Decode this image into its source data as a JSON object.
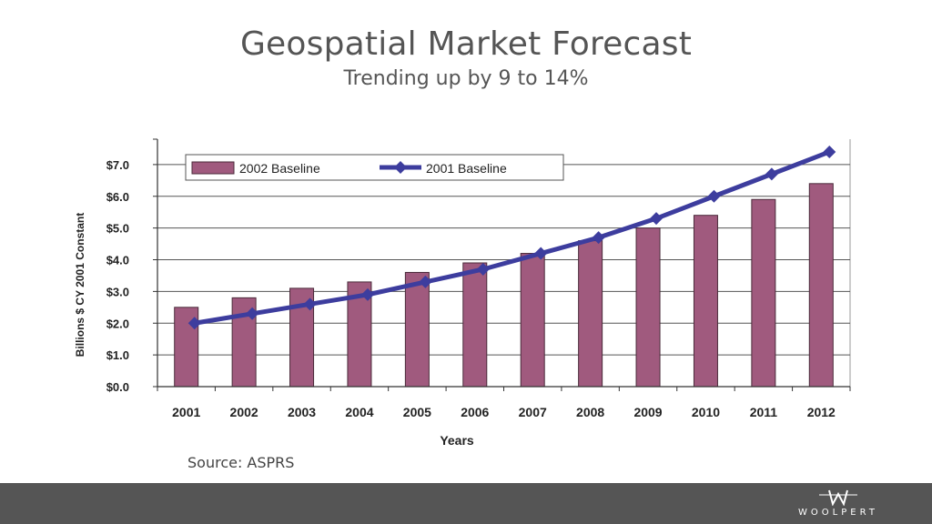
{
  "slide": {
    "title": "Geospatial Market Forecast",
    "subtitle": "Trending up by 9 to 14%",
    "source": "Source: ASPRS",
    "logo_text": "WOOLPERT"
  },
  "colors": {
    "bar": "#a05a7e",
    "bar_stroke": "#4a2a3a",
    "line": "#3d3d9e",
    "footer": "#555555"
  },
  "chart_data": {
    "type": "bar",
    "xlabel": "Years",
    "ylabel": "Billions $ CY 2001 Constant",
    "categories": [
      "2001",
      "2002",
      "2003",
      "2004",
      "2005",
      "2006",
      "2007",
      "2008",
      "2009",
      "2010",
      "2011",
      "2012"
    ],
    "ylim": [
      0,
      7.8
    ],
    "yticks": [
      {
        "value": 0,
        "label": "$0.0"
      },
      {
        "value": 1,
        "label": "$1.0"
      },
      {
        "value": 2,
        "label": "$2.0"
      },
      {
        "value": 3,
        "label": "$3.0"
      },
      {
        "value": 4,
        "label": "$4.0"
      },
      {
        "value": 5,
        "label": "$5.0"
      },
      {
        "value": 6,
        "label": "$6.0"
      },
      {
        "value": 7,
        "label": "$7.0"
      }
    ],
    "grid": true,
    "legend_position": "top",
    "series": [
      {
        "name": "2002 Baseline",
        "type": "bar",
        "values": [
          2.5,
          2.8,
          3.1,
          3.3,
          3.6,
          3.9,
          4.2,
          4.6,
          5.0,
          5.4,
          5.9,
          6.4
        ]
      },
      {
        "name": "2001 Baseline",
        "type": "line",
        "values": [
          2.0,
          2.3,
          2.6,
          2.9,
          3.3,
          3.7,
          4.2,
          4.7,
          5.3,
          6.0,
          6.7,
          7.4
        ]
      }
    ]
  }
}
